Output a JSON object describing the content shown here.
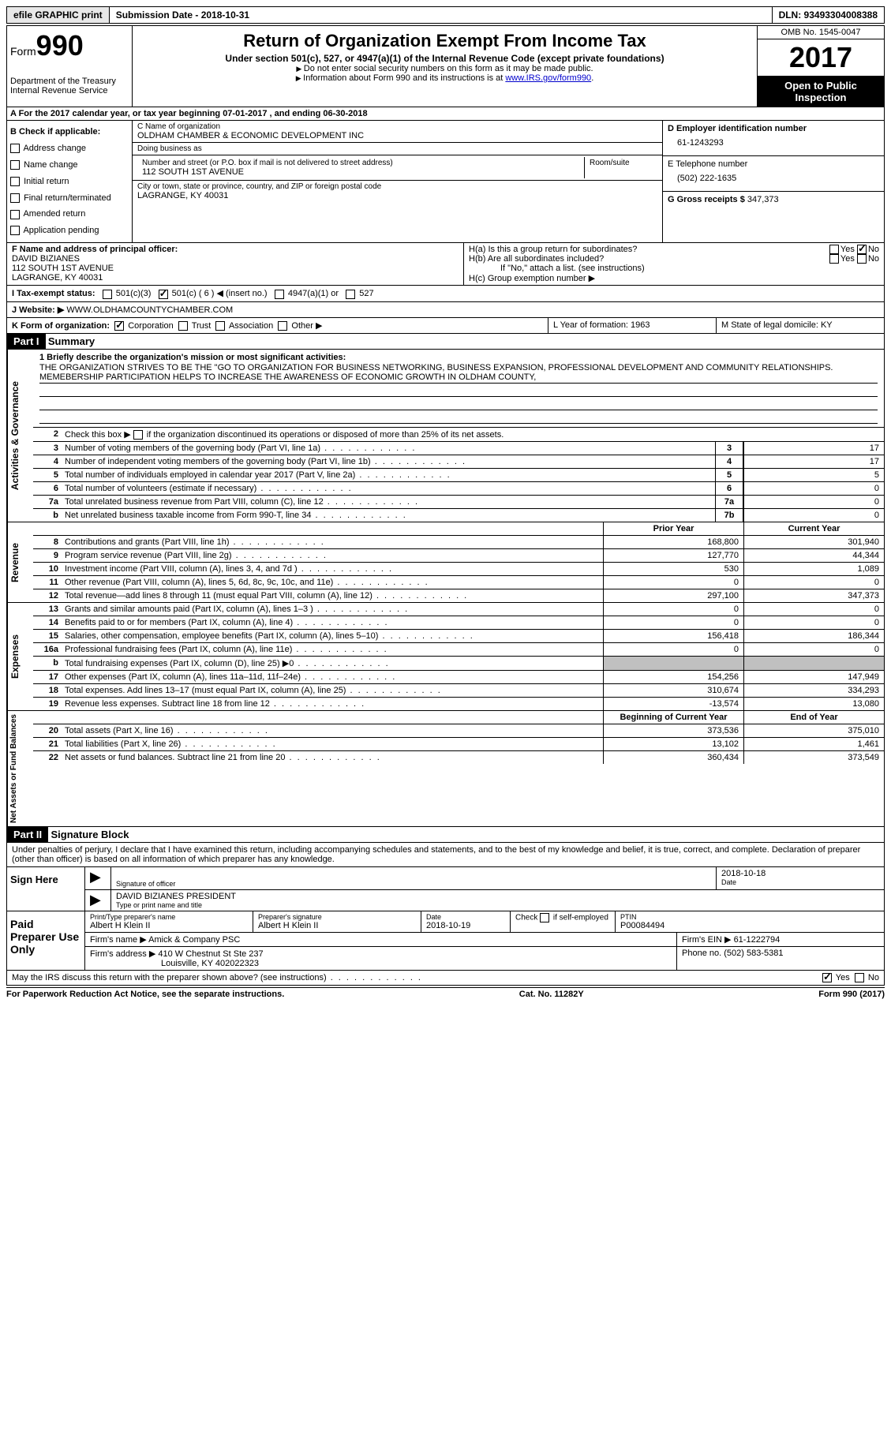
{
  "topbar": {
    "efile": "efile GRAPHIC print",
    "submission": "Submission Date - 2018-10-31",
    "dln": "DLN: 93493304008388"
  },
  "header": {
    "form_label": "Form",
    "form_number": "990",
    "dept": "Department of the Treasury",
    "irs": "Internal Revenue Service",
    "title": "Return of Organization Exempt From Income Tax",
    "subtitle": "Under section 501(c), 527, or 4947(a)(1) of the Internal Revenue Code (except private foundations)",
    "note1": "Do not enter social security numbers on this form as it may be made public.",
    "note2": "Information about Form 990 and its instructions is at ",
    "note2_link": "www.IRS.gov/form990",
    "omb": "OMB No. 1545-0047",
    "year": "2017",
    "inspection": "Open to Public Inspection"
  },
  "row_a": "A  For the 2017 calendar year, or tax year beginning 07-01-2017   , and ending 06-30-2018",
  "section_b": {
    "label": "B Check if applicable:",
    "items": [
      "Address change",
      "Name change",
      "Initial return",
      "Final return/terminated",
      "Amended return",
      "Application pending"
    ]
  },
  "section_c": {
    "name_label": "C Name of organization",
    "name": "OLDHAM CHAMBER & ECONOMIC DEVELOPMENT INC",
    "dba_label": "Doing business as",
    "dba": "",
    "street_label": "Number and street (or P.O. box if mail is not delivered to street address)",
    "room_label": "Room/suite",
    "street": "112 SOUTH 1ST AVENUE",
    "city_label": "City or town, state or province, country, and ZIP or foreign postal code",
    "city": "LAGRANGE, KY  40031"
  },
  "section_d": {
    "ein_label": "D Employer identification number",
    "ein": "61-1243293",
    "phone_label": "E Telephone number",
    "phone": "(502) 222-1635",
    "gross_label": "G Gross receipts $",
    "gross": "347,373"
  },
  "section_f": {
    "label": "F Name and address of principal officer:",
    "name": "DAVID BIZIANES",
    "street": "112 SOUTH 1ST AVENUE",
    "city": "LAGRANGE, KY  40031"
  },
  "section_h": {
    "ha": "H(a)  Is this a group return for subordinates?",
    "hb": "H(b)  Are all subordinates included?",
    "hb_note": "If \"No,\" attach a list. (see instructions)",
    "hc": "H(c)  Group exemption number ▶"
  },
  "row_i": {
    "label": "I  Tax-exempt status:",
    "opt1": "501(c)(3)",
    "opt2": "501(c) ( 6 ) ◀ (insert no.)",
    "opt3": "4947(a)(1) or",
    "opt4": "527"
  },
  "row_j": {
    "label": "J  Website: ▶",
    "value": "WWW.OLDHAMCOUNTYCHAMBER.COM"
  },
  "row_k": {
    "label": "K Form of organization:",
    "opts": [
      "Corporation",
      "Trust",
      "Association",
      "Other ▶"
    ]
  },
  "row_l": "L Year of formation: 1963",
  "row_m": "M State of legal domicile: KY",
  "part1": {
    "header": "Part I",
    "title": "Summary"
  },
  "mission": {
    "label": "1  Briefly describe the organization's mission or most significant activities:",
    "text": "THE ORGANIZATION STRIVES TO BE THE \"GO TO ORGANIZATION FOR BUSINESS NETWORKING, BUSINESS EXPANSION, PROFESSIONAL DEVELOPMENT AND COMMUNITY RELATIONSHIPS. MEMEBERSHIP PARTICIPATION HELPS TO INCREASE THE AWARENESS OF ECONOMIC GROWTH IN OLDHAM COUNTY,"
  },
  "line2": "2    Check this box ▶       if the organization discontinued its operations or disposed of more than 25% of its net assets.",
  "governance_rows": [
    {
      "num": "3",
      "desc": "Number of voting members of the governing body (Part VI, line 1a)",
      "ln": "3",
      "val": "17"
    },
    {
      "num": "4",
      "desc": "Number of independent voting members of the governing body (Part VI, line 1b)",
      "ln": "4",
      "val": "17"
    },
    {
      "num": "5",
      "desc": "Total number of individuals employed in calendar year 2017 (Part V, line 2a)",
      "ln": "5",
      "val": "5"
    },
    {
      "num": "6",
      "desc": "Total number of volunteers (estimate if necessary)",
      "ln": "6",
      "val": "0"
    },
    {
      "num": "7a",
      "desc": "Total unrelated business revenue from Part VIII, column (C), line 12",
      "ln": "7a",
      "val": "0"
    },
    {
      "num": "b",
      "desc": "Net unrelated business taxable income from Form 990-T, line 34",
      "ln": "7b",
      "val": "0"
    }
  ],
  "revenue_header": {
    "prior": "Prior Year",
    "current": "Current Year"
  },
  "revenue_rows": [
    {
      "num": "8",
      "desc": "Contributions and grants (Part VIII, line 1h)",
      "prior": "168,800",
      "current": "301,940"
    },
    {
      "num": "9",
      "desc": "Program service revenue (Part VIII, line 2g)",
      "prior": "127,770",
      "current": "44,344"
    },
    {
      "num": "10",
      "desc": "Investment income (Part VIII, column (A), lines 3, 4, and 7d )",
      "prior": "530",
      "current": "1,089"
    },
    {
      "num": "11",
      "desc": "Other revenue (Part VIII, column (A), lines 5, 6d, 8c, 9c, 10c, and 11e)",
      "prior": "0",
      "current": "0"
    },
    {
      "num": "12",
      "desc": "Total revenue—add lines 8 through 11 (must equal Part VIII, column (A), line 12)",
      "prior": "297,100",
      "current": "347,373"
    }
  ],
  "expense_rows": [
    {
      "num": "13",
      "desc": "Grants and similar amounts paid (Part IX, column (A), lines 1–3 )",
      "prior": "0",
      "current": "0"
    },
    {
      "num": "14",
      "desc": "Benefits paid to or for members (Part IX, column (A), line 4)",
      "prior": "0",
      "current": "0"
    },
    {
      "num": "15",
      "desc": "Salaries, other compensation, employee benefits (Part IX, column (A), lines 5–10)",
      "prior": "156,418",
      "current": "186,344"
    },
    {
      "num": "16a",
      "desc": "Professional fundraising fees (Part IX, column (A), line 11e)",
      "prior": "0",
      "current": "0"
    },
    {
      "num": "b",
      "desc": "Total fundraising expenses (Part IX, column (D), line 25) ▶0",
      "prior": "grey",
      "current": "grey"
    },
    {
      "num": "17",
      "desc": "Other expenses (Part IX, column (A), lines 11a–11d, 11f–24e)",
      "prior": "154,256",
      "current": "147,949"
    },
    {
      "num": "18",
      "desc": "Total expenses. Add lines 13–17 (must equal Part IX, column (A), line 25)",
      "prior": "310,674",
      "current": "334,293"
    },
    {
      "num": "19",
      "desc": "Revenue less expenses. Subtract line 18 from line 12",
      "prior": "-13,574",
      "current": "13,080"
    }
  ],
  "netassets_header": {
    "prior": "Beginning of Current Year",
    "current": "End of Year"
  },
  "netassets_rows": [
    {
      "num": "20",
      "desc": "Total assets (Part X, line 16)",
      "prior": "373,536",
      "current": "375,010"
    },
    {
      "num": "21",
      "desc": "Total liabilities (Part X, line 26)",
      "prior": "13,102",
      "current": "1,461"
    },
    {
      "num": "22",
      "desc": "Net assets or fund balances. Subtract line 21 from line 20",
      "prior": "360,434",
      "current": "373,549"
    }
  ],
  "side_labels": {
    "gov": "Activities & Governance",
    "rev": "Revenue",
    "exp": "Expenses",
    "net": "Net Assets or Fund Balances"
  },
  "part2": {
    "header": "Part II",
    "title": "Signature Block",
    "perjury": "Under penalties of perjury, I declare that I have examined this return, including accompanying schedules and statements, and to the best of my knowledge and belief, it is true, correct, and complete. Declaration of preparer (other than officer) is based on all information of which preparer has any knowledge."
  },
  "sign_here": {
    "label": "Sign Here",
    "sig_label": "Signature of officer",
    "date": "2018-10-18",
    "date_label": "Date",
    "name": "DAVID BIZIANES PRESIDENT",
    "name_label": "Type or print name and title"
  },
  "paid_prep": {
    "label": "Paid Preparer Use Only",
    "prep_name_label": "Print/Type preparer's name",
    "prep_name": "Albert H Klein II",
    "prep_sig_label": "Preparer's signature",
    "prep_sig": "Albert H Klein II",
    "prep_date_label": "Date",
    "prep_date": "2018-10-19",
    "self_emp": "Check       if self-employed",
    "ptin_label": "PTIN",
    "ptin": "P00084494",
    "firm_name_label": "Firm's name    ▶",
    "firm_name": "Amick & Company PSC",
    "firm_ein_label": "Firm's EIN ▶",
    "firm_ein": "61-1222794",
    "firm_addr_label": "Firm's address ▶",
    "firm_addr": "410 W Chestnut St Ste 237",
    "firm_city": "Louisville, KY  402022323",
    "phone_label": "Phone no.",
    "phone": "(502) 583-5381"
  },
  "discuss": "May the IRS discuss this return with the preparer shown above? (see instructions)",
  "footer": {
    "left": "For Paperwork Reduction Act Notice, see the separate instructions.",
    "mid": "Cat. No. 11282Y",
    "right": "Form 990 (2017)"
  }
}
